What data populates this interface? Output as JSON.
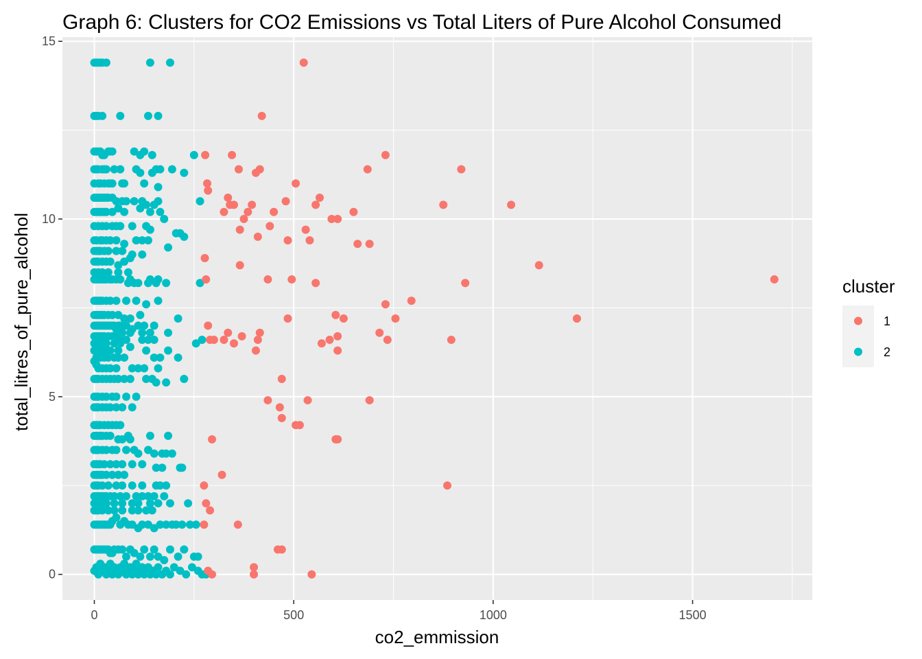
{
  "chart_data": {
    "type": "scatter",
    "title": "Graph 6: Clusters for CO2 Emissions vs Total Liters of Pure Alcohol Consumed",
    "xlabel": "co2_emmission",
    "ylabel": "total_litres_of_pure_alcohol",
    "xlim": [
      -80,
      1800
    ],
    "ylim": [
      -0.72,
      15.12
    ],
    "x_ticks": [
      0,
      500,
      1000,
      1500
    ],
    "x_tick_labels": [
      "0",
      "500",
      "1000",
      "1500"
    ],
    "y_ticks": [
      0,
      5,
      10,
      15
    ],
    "y_tick_labels": [
      "0",
      "5",
      "10",
      "15"
    ],
    "grid": true,
    "legend": {
      "title": "cluster",
      "position": "right"
    },
    "colors": {
      "1": "#F8766D",
      "2": "#00BFC4",
      "panel": "#EBEBEB",
      "grid": "#FFFFFF"
    },
    "series": [
      {
        "name": "1",
        "color": "#F8766D",
        "x": [
          525,
          420,
          278,
          345,
          362,
          405,
          415,
          730,
          685,
          920,
          283,
          285,
          505,
          565,
          555,
          480,
          395,
          335,
          340,
          350,
          325,
          385,
          450,
          650,
          610,
          595,
          875,
          1045,
          375,
          440,
          365,
          530,
          410,
          485,
          540,
          660,
          690,
          277,
          1115,
          1705,
          365,
          280,
          435,
          495,
          555,
          930,
          795,
          730,
          605,
          625,
          755,
          1210,
          485,
          285,
          335,
          300,
          290,
          325,
          370,
          350,
          415,
          410,
          405,
          570,
          590,
          610,
          715,
          735,
          895,
          610,
          470,
          435,
          535,
          690,
          465,
          470,
          505,
          515,
          295,
          605,
          610,
          320,
          885,
          275,
          280,
          290,
          360,
          460,
          470,
          275,
          400,
          285,
          400,
          295,
          545
        ],
        "y": [
          14.4,
          12.9,
          11.8,
          11.8,
          11.4,
          11.3,
          11.4,
          11.8,
          11.4,
          11.4,
          11.0,
          10.8,
          11.0,
          10.6,
          10.4,
          10.5,
          10.4,
          10.6,
          10.4,
          10.4,
          10.2,
          10.2,
          10.2,
          10.2,
          10.0,
          10.0,
          10.4,
          10.4,
          10.0,
          9.8,
          9.7,
          9.7,
          9.5,
          9.4,
          9.4,
          9.3,
          9.3,
          8.9,
          8.7,
          8.3,
          8.7,
          8.3,
          8.3,
          8.3,
          8.2,
          8.2,
          7.7,
          7.6,
          7.3,
          7.2,
          7.2,
          7.2,
          7.2,
          7.0,
          6.8,
          6.6,
          6.6,
          6.6,
          6.7,
          6.5,
          6.8,
          6.6,
          6.3,
          6.5,
          6.6,
          6.7,
          6.8,
          6.6,
          6.6,
          6.3,
          5.5,
          4.9,
          4.9,
          4.9,
          4.7,
          4.4,
          4.2,
          4.2,
          3.8,
          3.8,
          3.8,
          2.8,
          2.5,
          2.5,
          2.0,
          1.8,
          1.4,
          0.7,
          0.7,
          1.4,
          0.2,
          0.1,
          0.0,
          0.0,
          0.0
        ]
      },
      {
        "name": "2",
        "color": "#00BFC4",
        "x": [
          0,
          5,
          10,
          15,
          20,
          30,
          140,
          190,
          0,
          5,
          10,
          20,
          65,
          135,
          160,
          0,
          5,
          10,
          15,
          20,
          25,
          35,
          40,
          45,
          100,
          115,
          125,
          145,
          250,
          0,
          5,
          10,
          20,
          25,
          30,
          50,
          65,
          105,
          115,
          145,
          155,
          165,
          195,
          225,
          0,
          10,
          15,
          25,
          35,
          40,
          45,
          70,
          75,
          125,
          160,
          0,
          5,
          10,
          15,
          20,
          25,
          30,
          35,
          45,
          55,
          70,
          80,
          100,
          120,
          130,
          150,
          160,
          265,
          0,
          5,
          10,
          15,
          20,
          25,
          30,
          45,
          60,
          75,
          115,
          140,
          165,
          175,
          0,
          10,
          20,
          30,
          45,
          55,
          65,
          95,
          130,
          140,
          205,
          215,
          225,
          0,
          5,
          15,
          20,
          30,
          40,
          55,
          75,
          105,
          120,
          135,
          185,
          0,
          5,
          10,
          15,
          25,
          35,
          55,
          70,
          95,
          120,
          0,
          5,
          10,
          20,
          30,
          40,
          60,
          75,
          90,
          0,
          10,
          20,
          35,
          60,
          85,
          0,
          5,
          10,
          15,
          20,
          25,
          30,
          40,
          45,
          55,
          65,
          85,
          90,
          100,
          110,
          135,
          140,
          155,
          160,
          180,
          265,
          0,
          5,
          10,
          15,
          20,
          30,
          40,
          55,
          80,
          105,
          130,
          160,
          0,
          5,
          10,
          15,
          20,
          25,
          35,
          45,
          60,
          75,
          90,
          115,
          210,
          0,
          5,
          10,
          15,
          20,
          25,
          30,
          35,
          40,
          45,
          50,
          55,
          60,
          65,
          70,
          75,
          80,
          90,
          95,
          110,
          120,
          125,
          140,
          150,
          185,
          270,
          0,
          5,
          10,
          15,
          20,
          25,
          35,
          45,
          50,
          55,
          65,
          80,
          120,
          135,
          150,
          0,
          5,
          10,
          20,
          30,
          50,
          65,
          90,
          255,
          0,
          5,
          10,
          15,
          20,
          25,
          30,
          40,
          60,
          130,
          185,
          0,
          5,
          10,
          15,
          25,
          35,
          50,
          60,
          75,
          150,
          165,
          210,
          0,
          5,
          10,
          20,
          30,
          40,
          55,
          95,
          110,
          125,
          160,
          0,
          5,
          10,
          20,
          30,
          40,
          50,
          60,
          75,
          90,
          130,
          145,
          155,
          180,
          225,
          0,
          5,
          10,
          20,
          30,
          45,
          55,
          80,
          105,
          0,
          5,
          10,
          20,
          30,
          40,
          55,
          70,
          95,
          0,
          5,
          10,
          15,
          25,
          35,
          45,
          55,
          65,
          0,
          5,
          10,
          15,
          20,
          30,
          40,
          60,
          70,
          85,
          90,
          140,
          185,
          0,
          5,
          10,
          20,
          30,
          45,
          55,
          80,
          100,
          110,
          135,
          150,
          170,
          180,
          195,
          0,
          5,
          10,
          15,
          25,
          40,
          55,
          70,
          95,
          120,
          155,
          170,
          215,
          220,
          0,
          5,
          10,
          15,
          20,
          30,
          45,
          60,
          75,
          0,
          5,
          10,
          20,
          35,
          55,
          70,
          95,
          120,
          155,
          165,
          180,
          0,
          5,
          10,
          15,
          20,
          25,
          30,
          40,
          50,
          65,
          80,
          105,
          120,
          135,
          150,
          175,
          0,
          5,
          10,
          15,
          20,
          30,
          50,
          70,
          95,
          110,
          140,
          160,
          190,
          235,
          0,
          5,
          10,
          20,
          35,
          50,
          70,
          95,
          110,
          130,
          145,
          0,
          5,
          10,
          15,
          20,
          25,
          30,
          35,
          40,
          45,
          55,
          65,
          75,
          85,
          95,
          110,
          120,
          135,
          150,
          165,
          180,
          195,
          205,
          220,
          240,
          255,
          0,
          5,
          10,
          15,
          20,
          25,
          30,
          35,
          40,
          45,
          50,
          60,
          70,
          80,
          90,
          100,
          115,
          125,
          140,
          150,
          160,
          175,
          190,
          210,
          225,
          250,
          260
        ],
        "y": [
          14.4,
          14.4,
          14.4,
          14.4,
          14.4,
          14.4,
          14.4,
          14.4,
          12.9,
          12.9,
          12.9,
          12.9,
          12.9,
          12.9,
          12.9,
          11.9,
          11.9,
          11.9,
          11.9,
          11.8,
          11.8,
          11.9,
          11.9,
          11.9,
          11.9,
          11.8,
          11.9,
          11.8,
          11.8,
          11.4,
          11.4,
          11.4,
          11.4,
          11.4,
          11.4,
          11.4,
          11.4,
          11.4,
          11.3,
          11.3,
          11.4,
          11.4,
          11.4,
          11.3,
          11.0,
          11.0,
          11.0,
          11.0,
          11.0,
          11.0,
          11.0,
          11.0,
          11.0,
          11.0,
          10.9,
          10.6,
          10.6,
          10.6,
          10.6,
          10.6,
          10.6,
          10.6,
          10.6,
          10.6,
          10.5,
          10.5,
          10.5,
          10.5,
          10.5,
          10.4,
          10.4,
          10.5,
          10.5,
          10.2,
          10.2,
          10.2,
          10.2,
          10.2,
          10.2,
          10.2,
          10.2,
          10.3,
          10.2,
          10.3,
          10.2,
          10.2,
          10.0,
          9.8,
          9.8,
          9.8,
          9.8,
          9.8,
          9.8,
          9.8,
          9.8,
          9.8,
          9.7,
          9.6,
          9.6,
          9.5,
          9.4,
          9.4,
          9.4,
          9.4,
          9.4,
          9.4,
          9.4,
          9.3,
          9.4,
          9.4,
          9.4,
          9.2,
          9.1,
          9.1,
          9.1,
          9.1,
          9.1,
          9.1,
          9.1,
          9.1,
          9.0,
          9.0,
          8.8,
          8.8,
          8.8,
          8.8,
          8.8,
          8.8,
          8.7,
          8.8,
          8.9,
          8.5,
          8.5,
          8.5,
          8.5,
          8.5,
          8.5,
          8.3,
          8.3,
          8.3,
          8.3,
          8.3,
          8.3,
          8.3,
          8.3,
          8.3,
          8.3,
          8.3,
          8.2,
          8.3,
          8.2,
          8.2,
          8.2,
          8.3,
          8.2,
          8.3,
          8.2,
          8.2,
          7.7,
          7.7,
          7.7,
          7.7,
          7.7,
          7.7,
          7.7,
          7.7,
          7.7,
          7.7,
          7.6,
          7.7,
          7.3,
          7.3,
          7.3,
          7.3,
          7.3,
          7.3,
          7.3,
          7.3,
          7.3,
          7.2,
          7.2,
          7.3,
          7.2,
          7.0,
          7.0,
          7.0,
          7.0,
          7.0,
          7.0,
          7.0,
          7.0,
          7.0,
          7.0,
          7.0,
          6.9,
          7.0,
          7.0,
          6.8,
          7.0,
          7.0,
          6.8,
          6.9,
          7.0,
          6.8,
          7.0,
          6.8,
          7.0,
          6.8,
          6.6,
          6.7,
          6.7,
          6.7,
          6.7,
          6.7,
          6.7,
          6.7,
          6.7,
          6.7,
          6.7,
          6.6,
          6.6,
          6.6,
          6.6,
          6.6,
          6.5,
          6.5,
          6.5,
          6.5,
          6.5,
          6.5,
          6.5,
          6.4,
          6.5,
          6.3,
          6.3,
          6.3,
          6.3,
          6.3,
          6.3,
          6.3,
          6.3,
          6.3,
          6.3,
          6.3,
          6.3,
          6.1,
          6.1,
          6.1,
          6.1,
          6.1,
          6.1,
          6.1,
          6.1,
          6.1,
          6.1,
          6.1,
          6.0,
          5.9,
          5.8,
          5.8,
          5.8,
          5.8,
          5.8,
          5.8,
          5.8,
          5.8,
          5.8,
          5.5,
          5.5,
          5.5,
          5.5,
          5.5,
          5.5,
          5.5,
          5.5,
          5.5,
          5.5,
          5.5,
          5.5,
          5.4,
          5.4,
          5.5,
          5.0,
          5.0,
          5.0,
          5.0,
          5.0,
          5.0,
          5.0,
          5.0,
          5.0,
          4.7,
          4.7,
          4.7,
          4.7,
          4.7,
          4.7,
          4.7,
          4.7,
          4.7,
          4.2,
          4.2,
          4.2,
          4.2,
          4.2,
          4.2,
          4.2,
          4.2,
          4.2,
          3.9,
          3.9,
          3.9,
          3.9,
          3.9,
          3.9,
          3.9,
          3.8,
          3.8,
          3.9,
          3.8,
          3.9,
          3.9,
          3.5,
          3.5,
          3.5,
          3.5,
          3.5,
          3.5,
          3.5,
          3.5,
          3.5,
          3.4,
          3.5,
          3.4,
          3.4,
          3.4,
          3.4,
          3.1,
          3.1,
          3.1,
          3.1,
          3.1,
          3.1,
          3.1,
          3.1,
          3.1,
          3.1,
          3.0,
          3.0,
          3.0,
          3.0,
          2.8,
          2.8,
          2.8,
          2.8,
          2.8,
          2.8,
          2.8,
          2.8,
          2.8,
          2.5,
          2.5,
          2.5,
          2.5,
          2.5,
          2.5,
          2.5,
          2.5,
          2.5,
          2.5,
          2.5,
          2.5,
          2.2,
          2.2,
          2.2,
          2.2,
          2.2,
          2.2,
          2.2,
          2.2,
          2.2,
          2.2,
          2.2,
          2.2,
          2.2,
          2.2,
          2.2,
          2.2,
          2.0,
          2.0,
          2.0,
          2.0,
          2.0,
          2.0,
          2.0,
          2.0,
          2.0,
          2.0,
          2.0,
          2.0,
          2.0,
          2.0,
          1.8,
          1.8,
          1.8,
          1.8,
          1.8,
          1.8,
          1.8,
          1.8,
          1.8,
          1.8,
          1.8,
          1.4,
          1.4,
          1.4,
          1.4,
          1.4,
          1.4,
          1.4,
          1.4,
          1.4,
          1.5,
          1.6,
          1.4,
          1.5,
          1.4,
          1.4,
          1.3,
          1.4,
          1.4,
          1.3,
          1.4,
          1.4,
          1.4,
          1.4,
          1.4,
          1.4,
          1.4,
          0.7,
          0.7,
          0.7,
          0.7,
          0.7,
          0.7,
          0.7,
          0.7,
          0.6,
          0.6,
          0.7,
          0.7,
          0.7,
          0.5,
          0.7,
          0.6,
          0.5,
          0.7,
          0.5,
          0.7,
          0.5,
          0.4,
          0.7,
          0.5,
          0.7,
          0.5,
          0.5
        ],
        "x2": [
          0,
          5,
          10,
          15,
          20,
          25,
          30,
          35,
          40,
          45,
          50,
          55,
          60,
          65,
          70,
          75,
          80,
          85,
          90,
          95,
          100,
          105,
          110,
          115,
          120,
          125,
          130,
          135,
          140,
          145,
          150,
          155,
          160,
          170,
          180,
          190,
          200,
          215,
          230,
          245,
          260,
          270,
          280
        ],
        "y2": [
          0.1,
          0.2,
          0.0,
          0.3,
          0.1,
          0.2,
          0.0,
          0.1,
          0.3,
          0.0,
          0.2,
          0.1,
          0.0,
          0.2,
          0.1,
          0.3,
          0.0,
          0.1,
          0.2,
          0.0,
          0.1,
          0.3,
          0.0,
          0.1,
          0.2,
          0.0,
          0.1,
          0.2,
          0.0,
          0.1,
          0.1,
          0.0,
          0.2,
          0.0,
          0.1,
          0.0,
          0.2,
          0.1,
          0.0,
          0.2,
          0.1,
          0.0,
          0.0
        ]
      }
    ]
  },
  "legend_items": [
    {
      "label": "1",
      "color": "#F8766D"
    },
    {
      "label": "2",
      "color": "#00BFC4"
    }
  ]
}
